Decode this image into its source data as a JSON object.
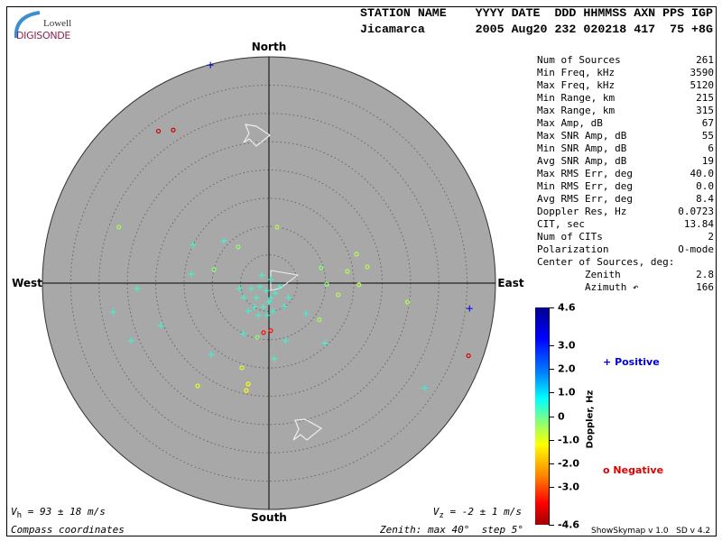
{
  "logo": {
    "line1": "Lowell",
    "line2": "DIGISONDE"
  },
  "header": {
    "labels": "STATION NAME    YYYY DATE  DDD HHMMSS AXN PPS IGP",
    "values": "Jicamarca       2005 Aug20 232 020218 417  75 +8G"
  },
  "stats": [
    {
      "label": "Num of Sources",
      "value": "261"
    },
    {
      "label": "Min Freq, kHz",
      "value": "3590"
    },
    {
      "label": "Max Freq, kHz",
      "value": "5120"
    },
    {
      "label": "Min Range, km",
      "value": "215"
    },
    {
      "label": "Max Range, km",
      "value": "315"
    },
    {
      "label": "Max Amp, dB",
      "value": "67"
    },
    {
      "label": "Max SNR Amp, dB",
      "value": "55"
    },
    {
      "label": "Min SNR Amp, dB",
      "value": "6"
    },
    {
      "label": "Avg SNR Amp, dB",
      "value": "19"
    },
    {
      "label": "Max RMS Err, deg",
      "value": "40.0"
    },
    {
      "label": "Min RMS Err, deg",
      "value": "0.0"
    },
    {
      "label": "Avg RMS Err, deg",
      "value": "8.4"
    },
    {
      "label": "Doppler Res, Hz",
      "value": "0.0723"
    },
    {
      "label": "CIT, sec",
      "value": "13.84"
    },
    {
      "label": "Num of CITs",
      "value": "2"
    },
    {
      "label": "Polarization",
      "value": "O-mode"
    },
    {
      "label": "Center of Sources, deg:",
      "value": ""
    },
    {
      "label": "        Zenith",
      "value": "2.8"
    },
    {
      "label": "        Azimuth ↶",
      "value": "166"
    }
  ],
  "directions": {
    "north": "North",
    "south": "South",
    "west": "West",
    "east": "East"
  },
  "footer": {
    "vh": "V",
    "vh_sub": "h",
    "vh_rest": " = 93 ± 18 m/s",
    "vz": "V",
    "vz_sub": "z",
    "vz_rest": " = -2 ± 1 m/s",
    "coords": "Compass coordinates",
    "zenith": "Zenith: max 40°  step 5°",
    "version": "ShowSkymap v 1.0   SD v 4.2"
  },
  "legend": {
    "positive_symbol": "+",
    "positive": "Positive",
    "negative_symbol": "o",
    "negative": "Negative",
    "colorbar_label": "Doppler, Hz"
  },
  "colors": {
    "positive": "#0000dd",
    "negative": "#dd0000",
    "disk": "#a8a8a8"
  },
  "chart_data": {
    "type": "scatter",
    "projection": "polar skymap, zenith angle radial, azimuth compass",
    "zenith_max": 40,
    "zenith_step": 5,
    "colorbar": {
      "min": -4.6,
      "max": 4.6,
      "ticks": [
        "4.6",
        "3.0",
        "2.0",
        "1.0",
        "0",
        "-1.0",
        "-2.0",
        "-3.0",
        "-4.6"
      ],
      "tick_values": [
        4.6,
        3,
        2,
        1,
        0,
        -1,
        -2,
        -3,
        -4.6
      ]
    },
    "points_fields": [
      "zenith_deg",
      "azimuth_deg",
      "doppler_hz"
    ],
    "points": [
      [
        39.9,
        345,
        4.2
      ],
      [
        33.2,
        324,
        -4.2
      ],
      [
        31.9,
        328,
        -4.2
      ],
      [
        28.3,
        290.5,
        -0.5
      ],
      [
        35.7,
        97.2,
        3.6
      ],
      [
        37.5,
        110,
        -4.0
      ],
      [
        33.2,
        124,
        0.5
      ],
      [
        22.1,
        214.7,
        -1.0
      ],
      [
        18.2,
        191.6,
        -1.2
      ],
      [
        19.4,
        191.9,
        -1.2
      ],
      [
        15.7,
        197.7,
        -0.8
      ],
      [
        24.7,
        97.8,
        -0.6
      ],
      [
        10,
        8.3,
        -0.6
      ],
      [
        28,
        259.5,
        0.4
      ],
      [
        26.4,
        247.3,
        0.4
      ],
      [
        23.3,
        267.6,
        0.4
      ],
      [
        20.5,
        248.6,
        0.4
      ],
      [
        16.2,
        219,
        0.4
      ],
      [
        15,
        296.6,
        0.4
      ],
      [
        10.9,
        313,
        0.4
      ],
      [
        8.4,
        319.6,
        -0.3
      ],
      [
        10,
        283.8,
        -0.3
      ],
      [
        13.8,
        276.6,
        0.4
      ],
      [
        16.3,
        71.7,
        -0.6
      ],
      [
        14,
        81.5,
        -0.6
      ],
      [
        17.6,
        80.6,
        -0.6
      ],
      [
        15.9,
        91,
        -0.6
      ],
      [
        12.4,
        99.6,
        -0.6
      ],
      [
        9.6,
        73.7,
        -0.3
      ],
      [
        10.2,
        91,
        -0.3
      ],
      [
        11,
        126,
        -0.5
      ],
      [
        8.5,
        129.7,
        0.4
      ],
      [
        14.5,
        137,
        0.4
      ],
      [
        10.6,
        164,
        0.4
      ],
      [
        13.4,
        176,
        0.4
      ],
      [
        8.8,
        186.2,
        -3.6
      ],
      [
        8.4,
        177.8,
        -3.6
      ],
      [
        9.8,
        192,
        -0.3
      ],
      [
        10,
        206.6,
        0.4
      ],
      [
        1.4,
        200.6,
        0.4
      ],
      [
        1.7,
        248,
        0.4
      ],
      [
        2.6,
        172.9,
        0.4
      ],
      [
        3.4,
        221.2,
        0.4
      ],
      [
        4.3,
        193,
        0.4
      ],
      [
        5.7,
        183.2,
        0.4
      ],
      [
        3.3,
        253.3,
        0.4
      ],
      [
        2.1,
        147.5,
        0.4
      ],
      [
        2.0,
        108.4,
        0.4
      ],
      [
        4.9,
        211.6,
        0.4
      ],
      [
        0.7,
        26.6,
        0.4
      ],
      [
        1.9,
        318.4,
        0.4
      ],
      [
        5.1,
        240.3,
        0.4
      ],
      [
        4.9,
        146.8,
        0.4
      ],
      [
        3.3,
        180,
        0.4
      ],
      [
        6.0,
        198.4,
        0.4
      ],
      [
        5.0,
        172.6,
        0.4
      ],
      [
        6.1,
        216.6,
        0.4
      ],
      [
        4.3,
        126,
        0.4
      ],
      [
        5.3,
        259.7,
        0.4
      ]
    ]
  }
}
